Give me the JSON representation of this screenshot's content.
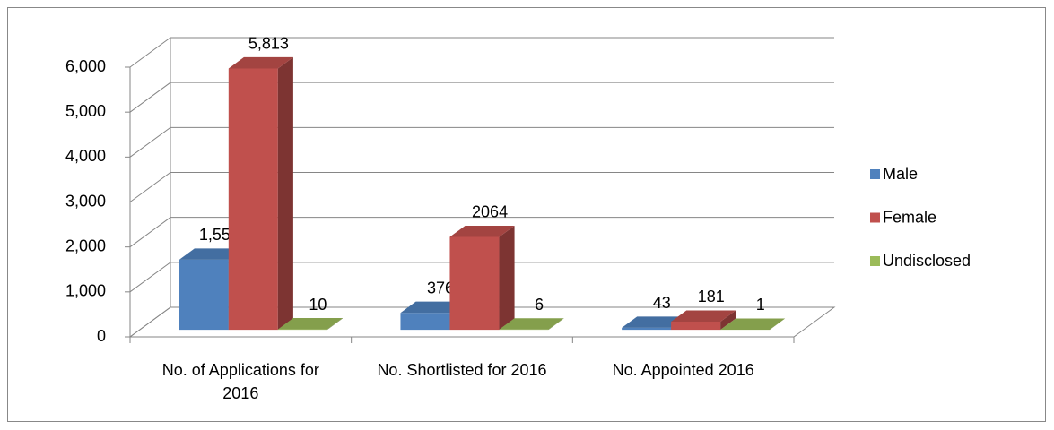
{
  "chart_data": {
    "type": "bar3d",
    "categories": [
      "No. of Applications for 2016",
      "No. Shortlisted for 2016",
      "No. Appointed 2016"
    ],
    "series": [
      {
        "name": "Male",
        "color": "#4f81bd",
        "values": [
          1559,
          376,
          43
        ],
        "value_labels": [
          "1,559",
          "376",
          "43"
        ]
      },
      {
        "name": "Female",
        "color": "#c0504d",
        "values": [
          5813,
          2064,
          181
        ],
        "value_labels": [
          "5,813",
          "2064",
          "181"
        ]
      },
      {
        "name": "Undisclosed",
        "color": "#9bbb59",
        "values": [
          10,
          6,
          1
        ],
        "value_labels": [
          "10",
          "6",
          "1"
        ]
      }
    ],
    "ylim": [
      0,
      6000
    ],
    "yticks": [
      0,
      {
        "value": 1000,
        "label": "1,000"
      },
      {
        "value": 2000,
        "label": "2,000"
      },
      {
        "value": 3000,
        "label": "3,000"
      },
      {
        "value": 4000,
        "label": "4,000"
      },
      {
        "value": 5000,
        "label": "5,000"
      },
      {
        "value": 6000,
        "label": "6,000"
      }
    ],
    "grid": true,
    "legend": "right"
  }
}
